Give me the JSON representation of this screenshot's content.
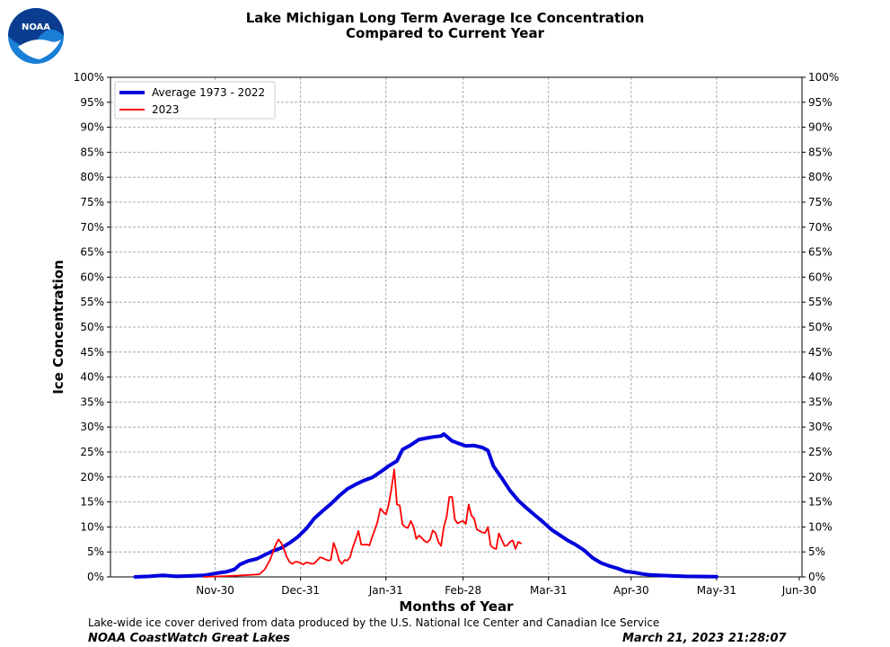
{
  "header": {
    "logo_text": "NOAA",
    "title_line1": "Lake Michigan Long Term Average Ice Concentration",
    "title_line2": "Compared to Current Year"
  },
  "footer": {
    "note": "Lake-wide ice cover derived from data produced by the U.S. National Ice Center and Canadian Ice Service",
    "organization": "NOAA CoastWatch Great Lakes",
    "timestamp": "March 21, 2023 21:28:07"
  },
  "colors": {
    "average": "#0000dd",
    "current": "#ff0000",
    "logo_blue": "#1a7fd6"
  },
  "chart_data": {
    "type": "line",
    "xlabel": "Months of Year",
    "ylabel": "Ice Concentration",
    "x_unit": "day of ice season (Nov 1 = 0)",
    "x_range": [
      -9,
      242
    ],
    "x_ticks": [
      {
        "day": 29,
        "label": "Nov-30"
      },
      {
        "day": 60,
        "label": "Dec-31"
      },
      {
        "day": 91,
        "label": "Jan-31"
      },
      {
        "day": 119,
        "label": "Feb-28"
      },
      {
        "day": 150,
        "label": "Mar-31"
      },
      {
        "day": 180,
        "label": "Apr-30"
      },
      {
        "day": 211,
        "label": "May-31"
      },
      {
        "day": 241,
        "label": "Jun-30"
      }
    ],
    "y_ticks": [
      "0%",
      "5%",
      "10%",
      "15%",
      "20%",
      "25%",
      "30%",
      "35%",
      "40%",
      "45%",
      "50%",
      "55%",
      "60%",
      "65%",
      "70%",
      "75%",
      "80%",
      "85%",
      "90%",
      "95%",
      "100%"
    ],
    "ylim": [
      0,
      100
    ],
    "grid": true,
    "legend_position": "top-left",
    "series": [
      {
        "name": "Average 1973 - 2022",
        "points": [
          [
            0,
            0
          ],
          [
            5,
            0.1
          ],
          [
            10,
            0.3
          ],
          [
            15,
            0.1
          ],
          [
            20,
            0.2
          ],
          [
            25,
            0.3
          ],
          [
            28,
            0.6
          ],
          [
            30,
            0.8
          ],
          [
            33,
            1.0
          ],
          [
            36,
            1.5
          ],
          [
            38,
            2.5
          ],
          [
            41,
            3.2
          ],
          [
            44,
            3.6
          ],
          [
            47,
            4.4
          ],
          [
            50,
            5.2
          ],
          [
            53,
            5.8
          ],
          [
            56,
            6.8
          ],
          [
            59,
            8.0
          ],
          [
            62,
            9.6
          ],
          [
            65,
            11.7
          ],
          [
            68,
            13.2
          ],
          [
            71,
            14.6
          ],
          [
            74,
            16.2
          ],
          [
            77,
            17.6
          ],
          [
            80,
            18.5
          ],
          [
            83,
            19.3
          ],
          [
            86,
            19.9
          ],
          [
            89,
            21.0
          ],
          [
            92,
            22.2
          ],
          [
            95,
            23.2
          ],
          [
            97,
            25.5
          ],
          [
            100,
            26.4
          ],
          [
            103,
            27.5
          ],
          [
            106,
            27.8
          ],
          [
            108,
            28.0
          ],
          [
            111,
            28.2
          ],
          [
            112,
            28.6
          ],
          [
            115,
            27.2
          ],
          [
            118,
            26.6
          ],
          [
            120,
            26.2
          ],
          [
            123,
            26.3
          ],
          [
            126,
            25.9
          ],
          [
            128,
            25.3
          ],
          [
            130,
            22.2
          ],
          [
            133,
            19.8
          ],
          [
            136,
            17.3
          ],
          [
            139,
            15.3
          ],
          [
            142,
            13.8
          ],
          [
            145,
            12.4
          ],
          [
            148,
            11.0
          ],
          [
            151,
            9.5
          ],
          [
            154,
            8.4
          ],
          [
            157,
            7.3
          ],
          [
            160,
            6.4
          ],
          [
            163,
            5.3
          ],
          [
            166,
            3.8
          ],
          [
            169,
            2.8
          ],
          [
            172,
            2.2
          ],
          [
            175,
            1.7
          ],
          [
            178,
            1.1
          ],
          [
            181,
            0.9
          ],
          [
            184,
            0.6
          ],
          [
            187,
            0.4
          ],
          [
            190,
            0.3
          ],
          [
            195,
            0.2
          ],
          [
            200,
            0.1
          ],
          [
            211,
            0.05
          ]
        ]
      },
      {
        "name": "2023",
        "points": [
          [
            25,
            0
          ],
          [
            35,
            0.2
          ],
          [
            45,
            0.5
          ],
          [
            46,
            1.0
          ],
          [
            47,
            1.5
          ],
          [
            48,
            2.5
          ],
          [
            49,
            3.5
          ],
          [
            50,
            5.0
          ],
          [
            51,
            6.5
          ],
          [
            52,
            7.5
          ],
          [
            53,
            6.8
          ],
          [
            54,
            5.5
          ],
          [
            55,
            4.0
          ],
          [
            56,
            3.0
          ],
          [
            57,
            2.6
          ],
          [
            58,
            3.0
          ],
          [
            59,
            3.0
          ],
          [
            60,
            2.8
          ],
          [
            61,
            2.5
          ],
          [
            62,
            2.9
          ],
          [
            63,
            2.8
          ],
          [
            64,
            2.6
          ],
          [
            65,
            2.7
          ],
          [
            66,
            3.3
          ],
          [
            67,
            3.9
          ],
          [
            68,
            3.8
          ],
          [
            69,
            3.5
          ],
          [
            70,
            3.3
          ],
          [
            71,
            3.4
          ],
          [
            72,
            6.8
          ],
          [
            73,
            5.3
          ],
          [
            74,
            3.3
          ],
          [
            75,
            2.6
          ],
          [
            76,
            3.4
          ],
          [
            77,
            3.3
          ],
          [
            78,
            4.0
          ],
          [
            79,
            6.0
          ],
          [
            80,
            7.5
          ],
          [
            81,
            9.2
          ],
          [
            82,
            6.5
          ],
          [
            83,
            6.4
          ],
          [
            84,
            6.5
          ],
          [
            85,
            6.3
          ],
          [
            86,
            8.0
          ],
          [
            87,
            9.5
          ],
          [
            88,
            11.2
          ],
          [
            89,
            13.7
          ],
          [
            90,
            13.0
          ],
          [
            91,
            12.5
          ],
          [
            92,
            14.5
          ],
          [
            93,
            17.7
          ],
          [
            94,
            21.5
          ],
          [
            95,
            14.5
          ],
          [
            96,
            14.3
          ],
          [
            97,
            10.5
          ],
          [
            98,
            10.0
          ],
          [
            99,
            9.8
          ],
          [
            100,
            11.2
          ],
          [
            101,
            10.0
          ],
          [
            102,
            7.6
          ],
          [
            103,
            8.3
          ],
          [
            104,
            7.8
          ],
          [
            105,
            7.2
          ],
          [
            106,
            6.9
          ],
          [
            107,
            7.5
          ],
          [
            108,
            9.3
          ],
          [
            109,
            8.8
          ],
          [
            110,
            7.0
          ],
          [
            111,
            6.2
          ],
          [
            112,
            10.0
          ],
          [
            113,
            12.0
          ],
          [
            114,
            16.0
          ],
          [
            115,
            16.0
          ],
          [
            116,
            11.5
          ],
          [
            117,
            10.7
          ],
          [
            118,
            11.0
          ],
          [
            119,
            11.2
          ],
          [
            120,
            10.6
          ],
          [
            121,
            14.5
          ],
          [
            122,
            12.3
          ],
          [
            123,
            11.7
          ],
          [
            124,
            9.5
          ],
          [
            125,
            9.2
          ],
          [
            126,
            8.9
          ],
          [
            127,
            8.8
          ],
          [
            128,
            10.0
          ],
          [
            129,
            6.3
          ],
          [
            130,
            5.8
          ],
          [
            131,
            5.6
          ],
          [
            132,
            8.7
          ],
          [
            133,
            7.5
          ],
          [
            134,
            6.2
          ],
          [
            135,
            6.3
          ],
          [
            136,
            7.0
          ],
          [
            137,
            7.3
          ],
          [
            138,
            5.6
          ],
          [
            139,
            7.0
          ],
          [
            140,
            6.7
          ]
        ]
      }
    ]
  }
}
